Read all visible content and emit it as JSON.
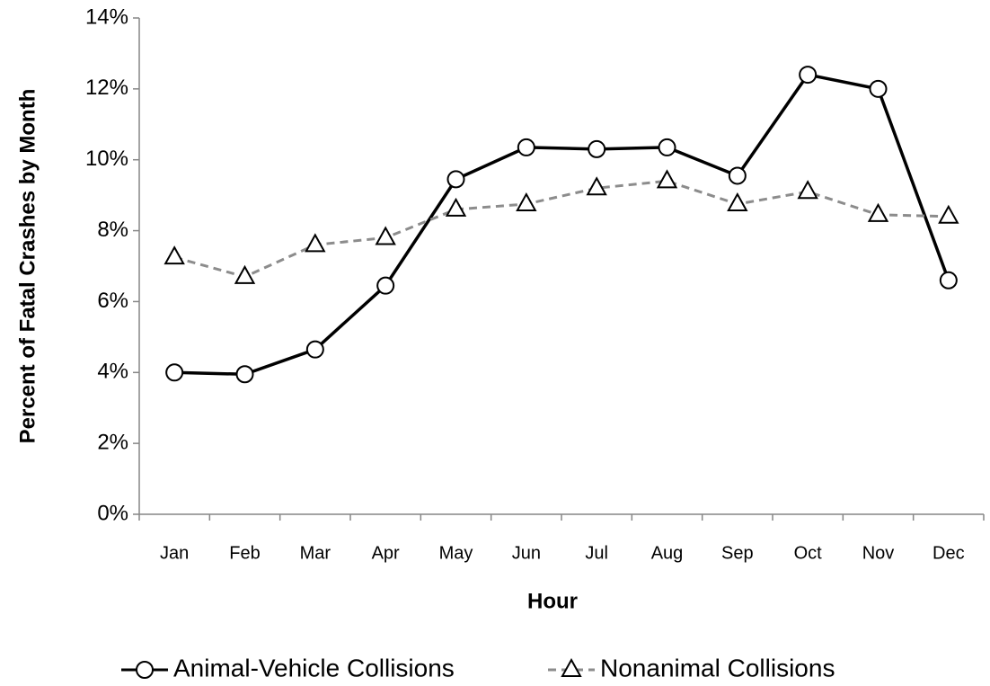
{
  "chart_data": {
    "type": "line",
    "y_label": "Percent of Fatal Crashes by Month",
    "x_label": "Hour",
    "categories": [
      "Jan",
      "Feb",
      "Mar",
      "Apr",
      "May",
      "Jun",
      "Jul",
      "Aug",
      "Sep",
      "Oct",
      "Nov",
      "Dec"
    ],
    "series": [
      {
        "name": "Animal-Vehicle Collisions",
        "color": "#000000",
        "marker": "circle",
        "dashed": false,
        "values": [
          4.0,
          3.95,
          4.65,
          6.45,
          9.45,
          10.35,
          10.3,
          10.35,
          9.55,
          12.4,
          12.0,
          6.6
        ]
      },
      {
        "name": "Nonanimal Collisions",
        "color": "#8c8c8c",
        "marker": "triangle",
        "dashed": true,
        "values": [
          7.25,
          6.7,
          7.6,
          7.8,
          8.6,
          8.75,
          9.2,
          9.4,
          8.75,
          9.1,
          8.45,
          8.4
        ]
      }
    ],
    "ylim": [
      0,
      14
    ],
    "yticks": [
      {
        "value": 0,
        "label": "0%"
      },
      {
        "value": 2,
        "label": "2%"
      },
      {
        "value": 4,
        "label": "4%"
      },
      {
        "value": 6,
        "label": "6%"
      },
      {
        "value": 8,
        "label": "8%"
      },
      {
        "value": 10,
        "label": "10%"
      },
      {
        "value": 12,
        "label": "12%"
      },
      {
        "value": 14,
        "label": "14%"
      }
    ],
    "grid": false,
    "legend": "bottom"
  }
}
